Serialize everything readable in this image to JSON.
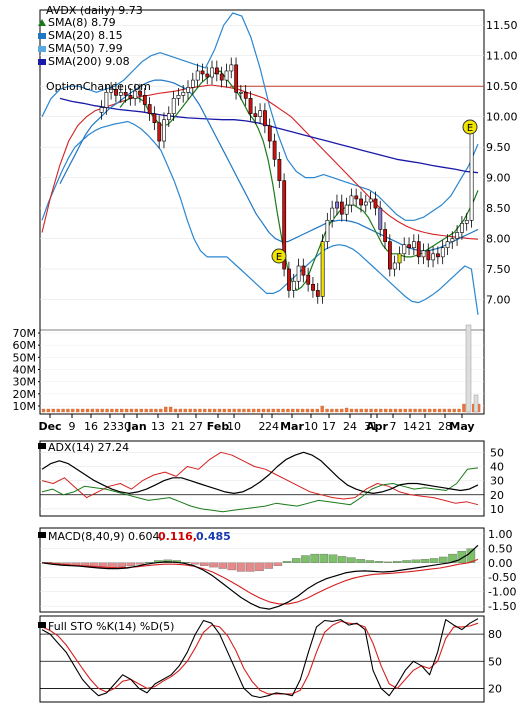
{
  "chart_data": [
    {
      "type": "candlestick",
      "title": "AVDX (daily) 9.73",
      "watermark": "OptionChance.com",
      "legend": [
        {
          "label": "SMA(8) 8.79",
          "color": "#1a7a1a",
          "marker": "triangle"
        },
        {
          "label": "SMA(20) 8.15",
          "color": "#1f77c4",
          "marker": "square"
        },
        {
          "label": "SMA(50) 7.99",
          "color": "#5aa8e0",
          "marker": "square"
        },
        {
          "label": "SMA(200) 9.08",
          "color": "#1a1aa8",
          "marker": "square"
        }
      ],
      "x_tick_labels": [
        "Dec",
        "9",
        "16",
        "23",
        "30",
        "Jan",
        "13",
        "21",
        "27",
        "Feb",
        "10",
        "2",
        "24",
        "Mar",
        "10",
        "17",
        "24",
        "31",
        "Apr",
        "7",
        "14",
        "21",
        "28",
        "May"
      ],
      "y_tick_labels": [
        "7.00",
        "7.50",
        "8.00",
        "8.50",
        "9.00",
        "9.50",
        "10.00",
        "10.50",
        "11.00",
        "11.50"
      ],
      "ylim": [
        6.5,
        11.75
      ],
      "resistance_line": 10.5,
      "earnings_markers": [
        "E",
        "E"
      ],
      "volume_tick_labels": [
        "70M",
        "60M",
        "50M",
        "40M",
        "30M",
        "20M",
        "10M"
      ],
      "close": [
        10.15,
        10.4,
        10.45,
        10.35,
        10.4,
        10.35,
        10.3,
        10.42,
        10.35,
        10.2,
        10.05,
        9.9,
        9.6,
        9.95,
        10.05,
        10.3,
        10.35,
        10.4,
        10.48,
        10.6,
        10.75,
        10.7,
        10.65,
        10.8,
        10.7,
        10.6,
        10.75,
        10.85,
        10.4,
        10.4,
        10.3,
        10.05,
        10.0,
        10.1,
        9.85,
        9.6,
        9.3,
        8.95,
        7.5,
        7.15,
        7.3,
        7.55,
        7.4,
        7.25,
        7.15,
        7.05,
        7.95,
        8.3,
        8.5,
        8.6,
        8.4,
        8.55,
        8.7,
        8.65,
        8.55,
        8.6,
        8.65,
        8.5,
        8.15,
        7.95,
        7.5,
        7.6,
        7.75,
        7.9,
        7.85,
        7.95,
        7.7,
        7.8,
        7.65,
        7.75,
        7.7,
        7.85,
        7.95,
        8.0,
        8.1,
        8.25,
        8.3,
        9.73
      ],
      "sma8": [
        10.15,
        10.25,
        10.3,
        10.32,
        10.3,
        10.25,
        10.1,
        10.0,
        9.9,
        9.85,
        9.87,
        9.95,
        10.05,
        10.15,
        10.25,
        10.35,
        10.45,
        10.55,
        10.62,
        10.68,
        10.72,
        10.75,
        10.65,
        10.55,
        10.45,
        10.35,
        10.2,
        10.05,
        9.95,
        9.8,
        9.6,
        9.3,
        8.9,
        8.4,
        7.95,
        7.55,
        7.3,
        7.15,
        7.2,
        7.3,
        7.5,
        7.7,
        7.9,
        8.1,
        8.25,
        8.35,
        8.45,
        8.5,
        8.55,
        8.55,
        8.5,
        8.45,
        8.35,
        8.2,
        8.05,
        7.9,
        7.8,
        7.75,
        7.75,
        7.72,
        7.7,
        7.7,
        7.72,
        7.75,
        7.8,
        7.85,
        7.9,
        7.95,
        8.0,
        8.05,
        8.1,
        8.2,
        8.3,
        8.45,
        8.6,
        8.79
      ],
      "sma20": [
        8.9,
        9.1,
        9.3,
        9.5,
        9.7,
        9.85,
        9.95,
        10.05,
        10.15,
        10.22,
        10.3,
        10.38,
        10.45,
        10.52,
        10.57,
        10.6,
        10.6,
        10.58,
        10.55,
        10.5,
        10.45,
        10.35,
        10.2,
        10.0,
        9.8,
        9.6,
        9.4,
        9.2,
        9.0,
        8.8,
        8.6,
        8.4,
        8.25,
        8.1,
        8.0,
        7.95,
        7.95,
        8.0,
        8.05,
        8.1,
        8.15,
        8.2,
        8.25,
        8.28,
        8.3,
        8.3,
        8.28,
        8.25,
        8.2,
        8.15,
        8.1,
        8.05,
        8.0,
        7.95,
        7.9,
        7.85,
        7.82,
        7.8,
        7.8,
        7.82,
        7.85,
        7.9,
        7.95,
        8.0,
        8.05,
        8.1,
        8.15
      ],
      "sma50": [
        8.1,
        8.7,
        9.2,
        9.6,
        9.85,
        10.0,
        10.1,
        10.15,
        10.2,
        10.25,
        10.3,
        10.33,
        10.35,
        10.38,
        10.4,
        10.42,
        10.45,
        10.48,
        10.5,
        10.52,
        10.5,
        10.48,
        10.45,
        10.4,
        10.35,
        10.3,
        10.2,
        10.1,
        10.0,
        9.85,
        9.7,
        9.55,
        9.4,
        9.25,
        9.1,
        8.95,
        8.8,
        8.65,
        8.5,
        8.38,
        8.28,
        8.2,
        8.14,
        8.1,
        8.07,
        8.05,
        8.03,
        8.02,
        8.0,
        7.99
      ],
      "sma200": [
        10.3,
        10.25,
        10.22,
        10.18,
        10.15,
        10.12,
        10.1,
        10.08,
        10.05,
        10.02,
        10.0,
        9.98,
        9.97,
        9.96,
        9.95,
        9.95,
        9.93,
        9.9,
        9.85,
        9.8,
        9.75,
        9.7,
        9.65,
        9.6,
        9.55,
        9.5,
        9.45,
        9.4,
        9.35,
        9.3,
        9.27,
        9.24,
        9.2,
        9.17,
        9.14,
        9.1,
        9.08
      ],
      "bb_upper": [
        10.0,
        10.3,
        10.45,
        10.5,
        10.5,
        10.45,
        10.4,
        10.45,
        10.5,
        10.6,
        10.75,
        10.9,
        11.0,
        11.05,
        11.0,
        10.95,
        10.9,
        10.85,
        10.8,
        11.1,
        11.5,
        11.7,
        11.65,
        11.3,
        10.8,
        10.2,
        9.7,
        9.3,
        9.1,
        9.0,
        9.0,
        9.05,
        9.0,
        8.95,
        8.9,
        8.85,
        8.8,
        8.7,
        8.55,
        8.4,
        8.3,
        8.3,
        8.35,
        8.45,
        8.55,
        8.7,
        8.95,
        9.2,
        9.55
      ]
    },
    {
      "type": "line",
      "title": "ADX(14) 27.24",
      "y_tick_labels": [
        "50",
        "40",
        "30",
        "20",
        "10"
      ],
      "ylim": [
        5,
        58
      ],
      "adx": [
        38,
        42,
        44,
        42,
        38,
        34,
        30,
        27,
        24,
        22,
        21,
        22,
        24,
        27,
        30,
        32,
        32,
        30,
        28,
        26,
        24,
        22,
        21,
        22,
        25,
        29,
        34,
        40,
        45,
        48,
        50,
        48,
        44,
        38,
        32,
        27,
        24,
        22,
        21,
        22,
        24,
        27,
        28,
        28,
        27,
        26,
        25,
        24,
        23,
        24,
        27
      ],
      "plus_di": [
        30,
        28,
        32,
        25,
        18,
        22,
        26,
        28,
        24,
        30,
        34,
        36,
        33,
        40,
        38,
        45,
        50,
        48,
        44,
        40,
        38,
        34,
        30,
        26,
        22,
        20,
        18,
        17,
        18,
        24,
        28,
        26,
        22,
        20,
        19,
        18,
        16,
        14,
        15,
        13
      ],
      "minus_di": [
        22,
        24,
        20,
        22,
        26,
        25,
        24,
        22,
        20,
        18,
        16,
        17,
        18,
        15,
        12,
        10,
        9,
        8,
        9,
        10,
        11,
        12,
        14,
        13,
        12,
        14,
        16,
        15,
        14,
        13,
        18,
        24,
        27,
        28,
        26,
        24,
        25,
        24,
        23,
        28,
        38,
        39
      ]
    },
    {
      "type": "bar",
      "title": "MACD(8,40,9) 0.604,",
      "signal_label": "0.116,",
      "hist_label": "0.485",
      "y_tick_labels": [
        "1.00",
        "0.50",
        "0.00",
        "-0.50",
        "-1.00",
        "-1.50"
      ],
      "ylim": [
        -1.7,
        1.2
      ],
      "macd": [
        0.0,
        -0.05,
        -0.08,
        -0.1,
        -0.12,
        -0.15,
        -0.18,
        -0.2,
        -0.2,
        -0.18,
        -0.12,
        -0.05,
        0.0,
        0.03,
        0.02,
        -0.02,
        -0.1,
        -0.25,
        -0.45,
        -0.7,
        -0.95,
        -1.2,
        -1.4,
        -1.55,
        -1.6,
        -1.5,
        -1.35,
        -1.15,
        -0.9,
        -0.7,
        -0.55,
        -0.45,
        -0.35,
        -0.3,
        -0.28,
        -0.3,
        -0.32,
        -0.3,
        -0.25,
        -0.2,
        -0.15,
        -0.1,
        -0.05,
        0.0,
        0.1,
        0.3,
        0.604
      ],
      "signal": [
        0.0,
        -0.02,
        -0.05,
        -0.08,
        -0.1,
        -0.12,
        -0.14,
        -0.16,
        -0.17,
        -0.16,
        -0.14,
        -0.1,
        -0.07,
        -0.05,
        -0.05,
        -0.07,
        -0.12,
        -0.2,
        -0.32,
        -0.48,
        -0.66,
        -0.85,
        -1.05,
        -1.22,
        -1.35,
        -1.42,
        -1.42,
        -1.35,
        -1.22,
        -1.05,
        -0.9,
        -0.75,
        -0.62,
        -0.52,
        -0.45,
        -0.4,
        -0.38,
        -0.36,
        -0.33,
        -0.3,
        -0.26,
        -0.22,
        -0.18,
        -0.12,
        -0.05,
        0.0,
        0.116
      ],
      "hist": [
        0.02,
        0.0,
        -0.05,
        -0.1,
        -0.12,
        -0.14,
        -0.15,
        -0.16,
        -0.14,
        -0.1,
        -0.05,
        0.02,
        0.08,
        0.1,
        0.08,
        0.02,
        -0.05,
        -0.1,
        -0.15,
        -0.2,
        -0.25,
        -0.3,
        -0.3,
        -0.28,
        -0.2,
        -0.1,
        0.05,
        0.15,
        0.25,
        0.3,
        0.3,
        0.28,
        0.22,
        0.18,
        0.12,
        0.08,
        0.05,
        0.03,
        0.05,
        0.08,
        0.1,
        0.12,
        0.15,
        0.2,
        0.3,
        0.4,
        0.485
      ]
    },
    {
      "type": "line",
      "title": "Full STO %K(14) %D(5)",
      "y_tick_labels": [
        "80",
        "50",
        "20"
      ],
      "ylim": [
        5,
        100
      ],
      "k": [
        85,
        80,
        70,
        60,
        45,
        30,
        20,
        12,
        15,
        25,
        35,
        30,
        20,
        15,
        25,
        30,
        35,
        45,
        60,
        80,
        95,
        92,
        80,
        60,
        40,
        20,
        12,
        10,
        12,
        15,
        14,
        12,
        30,
        60,
        88,
        95,
        94,
        96,
        90,
        92,
        85,
        40,
        20,
        12,
        25,
        40,
        50,
        45,
        35,
        60,
        96,
        90,
        85,
        92,
        97
      ],
      "d": [
        88,
        84,
        78,
        68,
        55,
        42,
        30,
        20,
        16,
        20,
        28,
        30,
        25,
        20,
        22,
        28,
        33,
        40,
        50,
        65,
        82,
        90,
        88,
        78,
        62,
        42,
        28,
        18,
        14,
        14,
        14,
        14,
        18,
        35,
        60,
        82,
        90,
        94,
        92,
        91,
        88,
        70,
        45,
        25,
        20,
        30,
        40,
        45,
        42,
        50,
        75,
        88,
        88,
        89,
        92
      ]
    }
  ]
}
